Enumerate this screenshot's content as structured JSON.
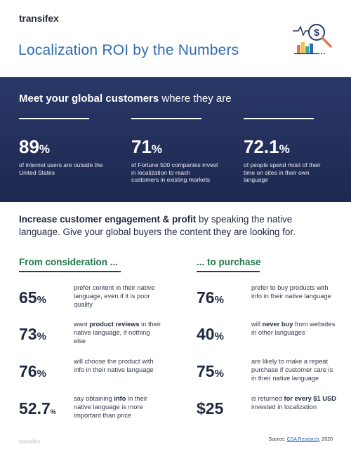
{
  "header": {
    "logo": "transifex",
    "title": "Localization ROI by the Numbers",
    "icon": "dollar-chart-magnifier-icon"
  },
  "banner": {
    "heading_bold": "Meet your global customers",
    "heading_rest": " where they are",
    "stats": [
      {
        "value": "89",
        "unit": "%",
        "desc": "of internet users are outside the United States"
      },
      {
        "value": "71",
        "unit": "%",
        "desc": "of Fortune 500 companies invest in localization to reach customers in existing markets"
      },
      {
        "value": "72.1",
        "unit": "%",
        "desc": "of people spend most of their time on sites in their own language"
      }
    ]
  },
  "intro": {
    "bold": "Increase customer engagement & profit",
    "rest": " by speaking the native language. Give your global buyers the content they are looking for."
  },
  "consideration": {
    "heading": "From consideration ...",
    "items": [
      {
        "value": "65",
        "unit": "%",
        "pre": "prefer content in their native language, even if it is poor quality",
        "bold": "",
        "post": ""
      },
      {
        "value": "73",
        "unit": "%",
        "pre": "want ",
        "bold": "product reviews",
        "post": " in their native language, if nothing else"
      },
      {
        "value": "76",
        "unit": "%",
        "pre": "will choose the product with info in their native language",
        "bold": "",
        "post": ""
      },
      {
        "value": "52.7",
        "unit": "%",
        "pre": "say obtaining ",
        "bold": "info",
        "post": " in their native language is more important than price"
      }
    ]
  },
  "purchase": {
    "heading": "... to purchase",
    "items": [
      {
        "value": "76",
        "unit": "%",
        "pre": "prefer to buy products with info in their native language",
        "bold": "",
        "post": ""
      },
      {
        "value": "40",
        "unit": "%",
        "pre": "will ",
        "bold": "never buy",
        "post": " from websites in other languages"
      },
      {
        "value": "75",
        "unit": "%",
        "pre": "are likely to make a repeat purchase if customer care is in their native language",
        "bold": "",
        "post": ""
      },
      {
        "value": "$25",
        "unit": "",
        "pre": "is returned ",
        "bold": "for every $1 USD",
        "post": " invested in localization"
      }
    ]
  },
  "footer": {
    "source_label": "Source: ",
    "source_link": "CSA Research",
    "source_year": ", 2020",
    "logo": "transifex"
  },
  "colors": {
    "title": "#2f6bb3",
    "banner": "#243160",
    "accent_green": "#1f7a4a"
  }
}
